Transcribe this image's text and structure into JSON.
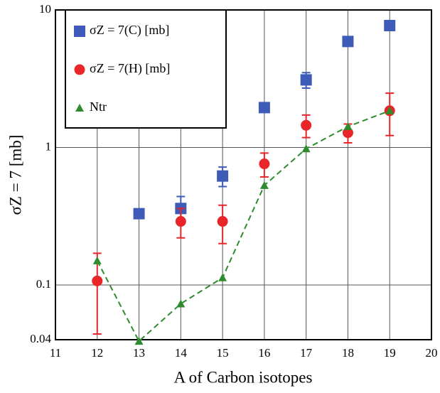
{
  "chart_data": {
    "type": "scatter",
    "x_label": "A of Carbon isotopes",
    "y_label": "σZ = 7 [mb]",
    "xlim": [
      11,
      20
    ],
    "xticks": [
      11,
      12,
      13,
      14,
      15,
      16,
      17,
      18,
      19,
      20
    ],
    "ylim": [
      0.04,
      10
    ],
    "yticks": [
      0.04,
      0.1,
      1,
      10
    ],
    "log_y": true,
    "grid": true,
    "legend": "upper left",
    "series": [
      {
        "name": "σZ = 7(C) [mb]",
        "color": "#3f5bb8",
        "marker": "square",
        "x": [
          13,
          14,
          15,
          16,
          17,
          18,
          19
        ],
        "values": [
          0.33,
          0.36,
          0.62,
          1.95,
          3.1,
          5.9,
          7.7
        ],
        "errors": [
          0,
          0.08,
          0.1,
          0.15,
          0.4,
          0.2,
          0.6
        ]
      },
      {
        "name": "σZ = 7(H) [mb]",
        "color": "#e8262a",
        "marker": "circle",
        "x": [
          12,
          14,
          15,
          16,
          17,
          18,
          19
        ],
        "values": [
          0.107,
          0.29,
          0.29,
          0.76,
          1.45,
          1.28,
          1.85
        ],
        "errors": [
          0.063,
          0.07,
          0.09,
          0.15,
          0.27,
          0.2,
          0.63
        ]
      },
      {
        "name": "Ntr",
        "color": "#2e8b2e",
        "marker": "triangle",
        "line": "dashed",
        "x": [
          12,
          13,
          14,
          15,
          16,
          17,
          18,
          19
        ],
        "values": [
          0.15,
          0.039,
          0.073,
          0.113,
          0.53,
          0.98,
          1.42,
          1.85
        ]
      }
    ]
  }
}
